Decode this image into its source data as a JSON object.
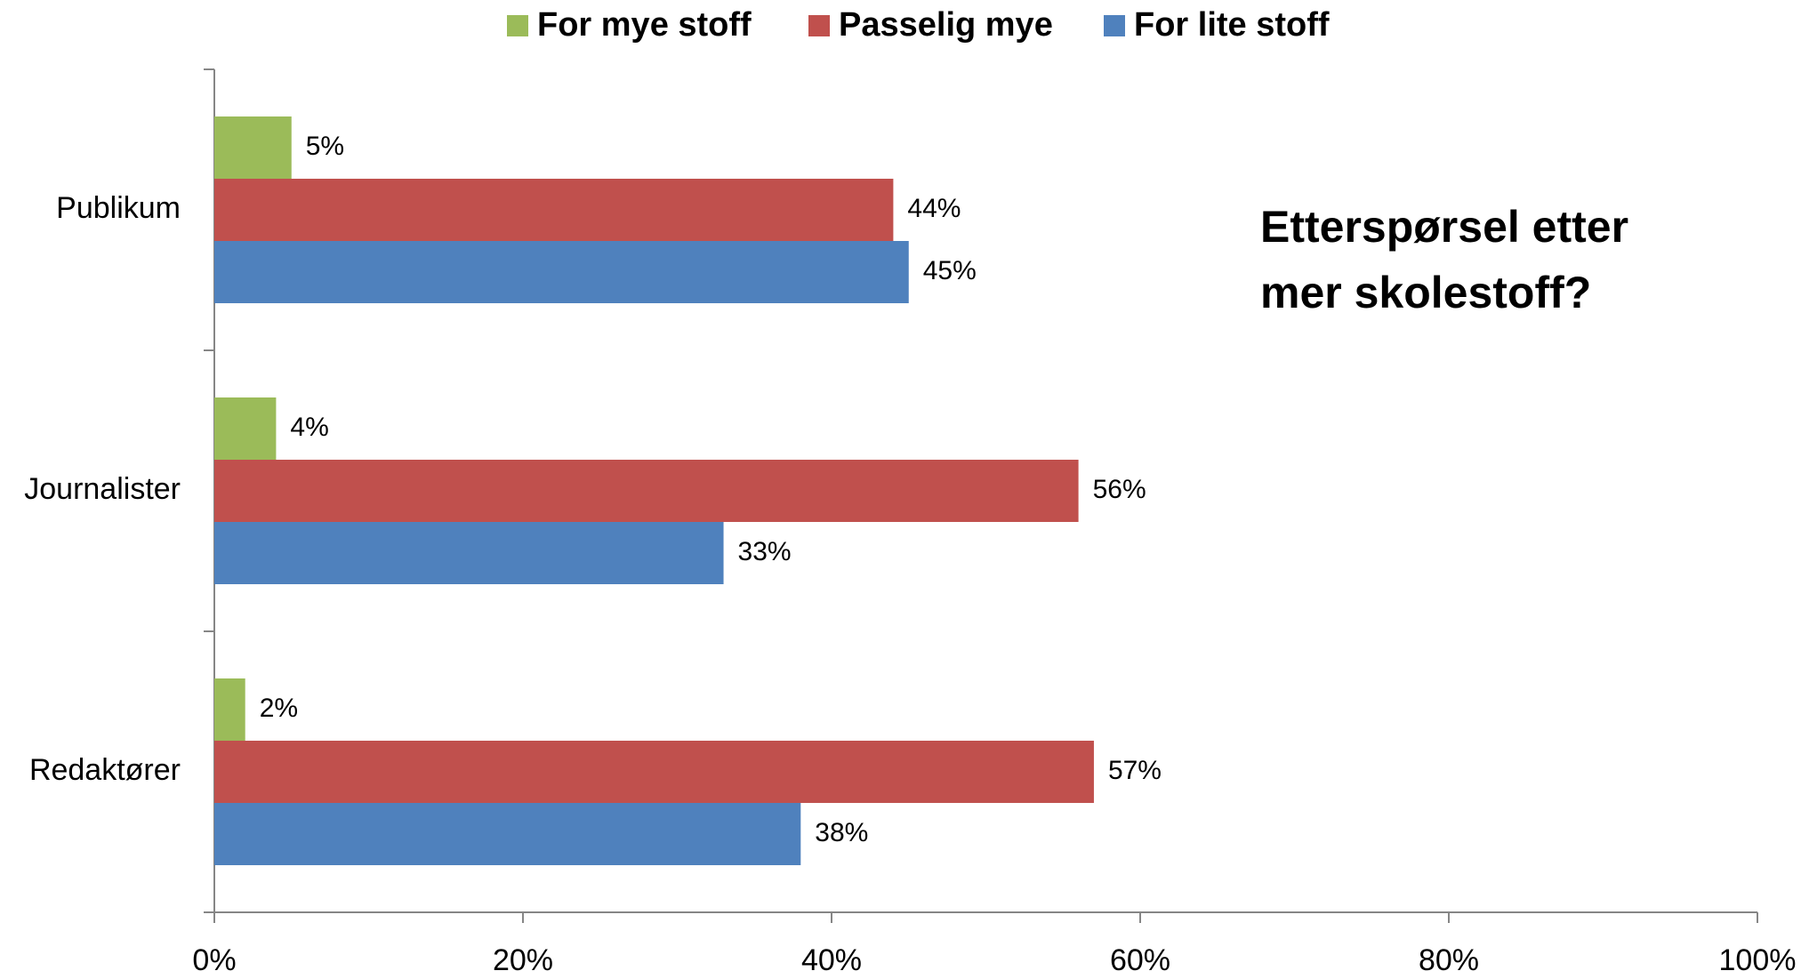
{
  "chart_data": {
    "type": "hbar",
    "annotation": "Etterspørsel etter mer skolestoff?",
    "categories": [
      "Publikum",
      "Journalister",
      "Redaktører"
    ],
    "series": [
      {
        "name": "For mye stoff",
        "color": "#9bbb59",
        "values": [
          5,
          4,
          2
        ],
        "value_labels": [
          "5%",
          "4%",
          "2%"
        ]
      },
      {
        "name": "Passelig mye",
        "color": "#c0504d",
        "values": [
          44,
          56,
          57
        ],
        "value_labels": [
          "44%",
          "56%",
          "57%"
        ]
      },
      {
        "name": "For lite stoff",
        "color": "#4f81bd",
        "values": [
          45,
          33,
          38
        ],
        "value_labels": [
          "45%",
          "33%",
          "38%"
        ]
      }
    ],
    "xlim": [
      0,
      100
    ],
    "xticks": [
      {
        "value": 0,
        "label": "0%"
      },
      {
        "value": 20,
        "label": "20%"
      },
      {
        "value": 40,
        "label": "40%"
      },
      {
        "value": 60,
        "label": "60%"
      },
      {
        "value": 80,
        "label": "80%"
      },
      {
        "value": 100,
        "label": "100%"
      }
    ],
    "grid": false
  }
}
